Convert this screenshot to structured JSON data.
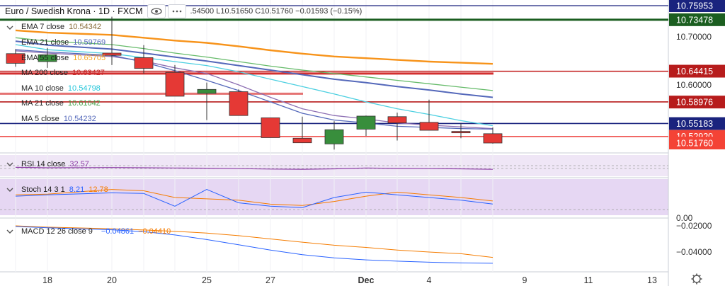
{
  "header": {
    "symbol": "Euro / Swedish Krona · 1D · FXCM",
    "ohlc_text": ".54500  L10.51650  C10.51760  −0.01593 (−0.15%)",
    "eye_icon": "eye-icon",
    "more_icon": "more-dots-icon"
  },
  "legend": {
    "price": [
      {
        "label": "EMA 7 close",
        "value": "10.54342",
        "color": "#f5a623"
      },
      {
        "label": "EMA 21 close",
        "value": "10.59769",
        "color": "#5468ba"
      },
      {
        "label": "EMA 55 close",
        "value": "10.65705",
        "color": "#f5a623"
      },
      {
        "label": "MA 200 close",
        "value": "10.63427",
        "color": "#c62828"
      },
      {
        "label": "MA 10 close",
        "value": "10.54798",
        "color": "#26c6da"
      },
      {
        "label": "MA 21 close",
        "value": "10.61042",
        "color": "#43a047"
      },
      {
        "label": "MA 5 close",
        "value": "10.54232",
        "color": "#5468ba"
      }
    ],
    "rsi": {
      "label": "RSI 14 close",
      "value": "32.57",
      "color": "#8e3fa7"
    },
    "stoch": {
      "label": "Stoch 14 3 1",
      "value_k": "8.21",
      "value_d": "12.78",
      "color_k": "#2962ff",
      "color_d": "#f57c00"
    },
    "macd": {
      "label": "MACD 12 26 close 9",
      "value_hist": "",
      "value_macd": "−0.04861",
      "value_signal": "−0.04410",
      "color_macd": "#2962ff",
      "color_signal": "#f57c00"
    }
  },
  "price_axis": {
    "ticks": [
      "10.70000",
      "10.60000"
    ],
    "badges": [
      {
        "text": "10.75953",
        "value": 10.75953,
        "bg": "#1a237e"
      },
      {
        "text": "10.73478",
        "value": 10.73478,
        "bg": "#1b5e20"
      },
      {
        "text": "10.64415",
        "value": 10.64415,
        "bg": "#b71c1c"
      },
      {
        "text": "10.58976",
        "value": 10.58976,
        "bg": "#b71c1c"
      },
      {
        "text": "10.55183",
        "value": 10.55183,
        "bg": "#1a237e"
      },
      {
        "text": "10.52920",
        "value": 10.5292,
        "bg": "#f44336"
      },
      {
        "text": "10.51760",
        "value": 10.5176,
        "bg": "#f44336"
      }
    ]
  },
  "stoch_axis": {
    "tick": "0.00"
  },
  "macd_axis": {
    "ticks": [
      "−0.02000",
      "−0.04000"
    ]
  },
  "x_axis": {
    "labels": [
      "18",
      "20",
      "25",
      "27",
      "Dec",
      "4",
      "9",
      "11",
      "13"
    ]
  },
  "settings_icon": "gear-icon",
  "chart_data": {
    "type": "candlestick",
    "title": "Euro / Swedish Krona · 1D · FXCM",
    "candles": [
      {
        "date": "Nov 18",
        "open": 10.675,
        "close": 10.658,
        "high": 10.683,
        "low": 10.652
      },
      {
        "date": "Nov 19",
        "open": 10.661,
        "close": 10.673,
        "high": 10.685,
        "low": 10.65
      },
      {
        "date": "Nov 20",
        "open": 10.676,
        "close": 10.672,
        "high": 10.74,
        "low": 10.655
      },
      {
        "date": "Nov 21",
        "open": 10.668,
        "close": 10.649,
        "high": 10.69,
        "low": 10.64
      },
      {
        "date": "Nov 22",
        "open": 10.642,
        "close": 10.6,
        "high": 10.655,
        "low": 10.6
      },
      {
        "date": "Nov 25",
        "open": 10.605,
        "close": 10.612,
        "high": 10.624,
        "low": 10.558
      },
      {
        "date": "Nov 26",
        "open": 10.608,
        "close": 10.566,
        "high": 10.612,
        "low": 10.566
      },
      {
        "date": "Nov 27",
        "open": 10.562,
        "close": 10.527,
        "high": 10.562,
        "low": 10.527
      },
      {
        "date": "Nov 28",
        "open": 10.526,
        "close": 10.518,
        "high": 10.564,
        "low": 10.518
      },
      {
        "date": "Nov 29",
        "open": 10.516,
        "close": 10.541,
        "high": 10.556,
        "low": 10.506
      },
      {
        "date": "Dec 2",
        "open": 10.542,
        "close": 10.565,
        "high": 10.566,
        "low": 10.53
      },
      {
        "date": "Dec 3",
        "open": 10.564,
        "close": 10.553,
        "high": 10.571,
        "low": 10.522
      },
      {
        "date": "Dec 4",
        "open": 10.554,
        "close": 10.54,
        "high": 10.594,
        "low": 10.54
      },
      {
        "date": "Dec 5",
        "open": 10.538,
        "close": 10.536,
        "high": 10.552,
        "low": 10.526
      },
      {
        "date": "Dec 6",
        "open": 10.534,
        "close": 10.5176,
        "high": 10.545,
        "low": 10.5165
      }
    ],
    "overlays": [
      {
        "name": "EMA 55",
        "color": "#f7931a",
        "values": [
          10.716,
          10.712,
          10.708,
          10.703,
          10.698,
          10.694,
          10.688,
          10.681,
          10.675,
          10.67,
          10.667,
          10.664,
          10.661,
          10.659,
          10.657
        ]
      },
      {
        "name": "EMA 21",
        "color": "#5468ba",
        "values": [
          10.697,
          10.69,
          10.683,
          10.676,
          10.669,
          10.662,
          10.654,
          10.646,
          10.638,
          10.63,
          10.624,
          10.617,
          10.611,
          10.604,
          10.598
        ]
      },
      {
        "name": "MA 21",
        "color": "#66bb6a",
        "values": [
          10.703,
          10.697,
          10.691,
          10.684,
          10.676,
          10.669,
          10.661,
          10.653,
          10.646,
          10.64,
          10.634,
          10.628,
          10.622,
          10.616,
          10.61
        ]
      },
      {
        "name": "MA 10",
        "color": "#4dd0e1",
        "values": [
          10.691,
          10.682,
          10.675,
          10.668,
          10.661,
          10.654,
          10.643,
          10.63,
          10.617,
          10.604,
          10.59,
          10.578,
          10.568,
          10.557,
          10.548
        ]
      },
      {
        "name": "EMA 7",
        "color": "#8d6fb3",
        "values": [
          10.68,
          10.676,
          10.67,
          10.662,
          10.65,
          10.64,
          10.62,
          10.598,
          10.578,
          10.566,
          10.56,
          10.553,
          10.549,
          10.546,
          10.543
        ]
      },
      {
        "name": "MA 5",
        "color": "#5468ba",
        "values": [
          10.682,
          10.678,
          10.672,
          10.66,
          10.645,
          10.628,
          10.61,
          10.59,
          10.57,
          10.558,
          10.553,
          10.547,
          10.545,
          10.543,
          10.542
        ]
      }
    ],
    "hlines": [
      {
        "value": 10.644,
        "color": "#c62828"
      },
      {
        "value": 10.59,
        "color": "#b71c1c"
      },
      {
        "value": 10.552,
        "color": "#1a237e"
      },
      {
        "value": 10.529,
        "color": "#ef5350"
      }
    ],
    "rsi": {
      "values": [
        42,
        40,
        41,
        40,
        39,
        38,
        36,
        34,
        33,
        35,
        39,
        37,
        36,
        35,
        32.57
      ],
      "upper": 70,
      "lower": 30
    },
    "stoch": {
      "k": [
        20,
        22,
        25,
        24,
        5,
        30,
        10,
        5,
        3,
        18,
        26,
        22,
        18,
        14,
        8.21
      ],
      "d": [
        22,
        23,
        30,
        28,
        18,
        16,
        14,
        8,
        6,
        12,
        20,
        26,
        22,
        18,
        12.78
      ]
    },
    "macd": {
      "macd": [
        -0.0205,
        -0.0215,
        -0.023,
        -0.0245,
        -0.027,
        -0.0305,
        -0.0345,
        -0.0385,
        -0.042,
        -0.0445,
        -0.046,
        -0.047,
        -0.0478,
        -0.0483,
        -0.0486
      ],
      "signal": [
        -0.02,
        -0.021,
        -0.0222,
        -0.0232,
        -0.0242,
        -0.0255,
        -0.0275,
        -0.03,
        -0.0325,
        -0.0348,
        -0.0365,
        -0.0385,
        -0.04,
        -0.0413,
        -0.0441
      ]
    }
  }
}
